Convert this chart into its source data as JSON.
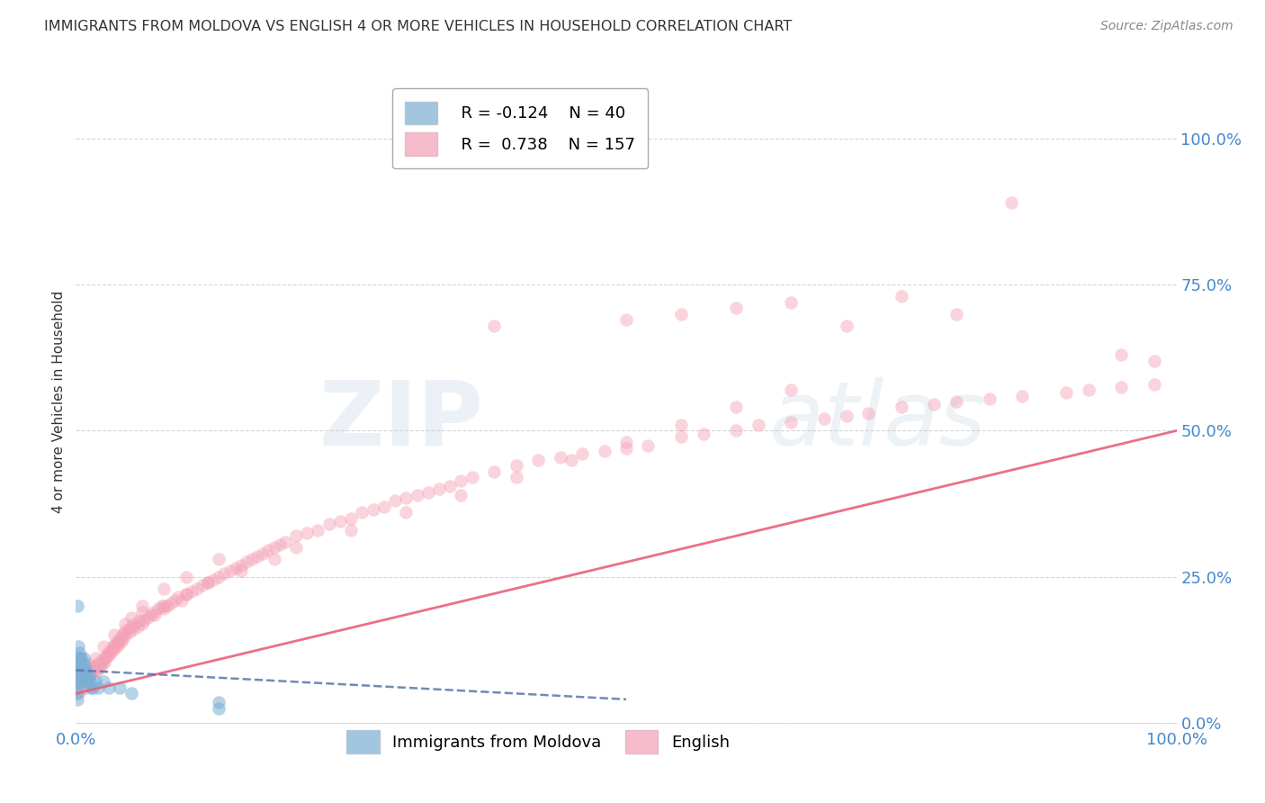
{
  "title": "IMMIGRANTS FROM MOLDOVA VS ENGLISH 4 OR MORE VEHICLES IN HOUSEHOLD CORRELATION CHART",
  "source": "Source: ZipAtlas.com",
  "ylabel": "4 or more Vehicles in Household",
  "xlim": [
    0.0,
    1.0
  ],
  "ylim": [
    0.0,
    1.1
  ],
  "x_tick_labels": [
    "0.0%",
    "100.0%"
  ],
  "y_tick_labels": [
    "0.0%",
    "25.0%",
    "50.0%",
    "75.0%",
    "100.0%"
  ],
  "y_tick_positions": [
    0.0,
    0.25,
    0.5,
    0.75,
    1.0
  ],
  "legend_r_blue": "-0.124",
  "legend_n_blue": "40",
  "legend_r_pink": "0.738",
  "legend_n_pink": "157",
  "color_blue": "#7BAFD4",
  "color_pink": "#F4A0B5",
  "color_blue_line": "#5577AA",
  "color_pink_line": "#E8607A",
  "watermark_zip": "ZIP",
  "watermark_atlas": "atlas",
  "background_color": "#ffffff",
  "grid_color": "#cccccc",
  "title_color": "#333333",
  "axis_label_color": "#333333",
  "tick_label_color_blue": "#4488CC",
  "source_color": "#888888",
  "blue_x": [
    0.001,
    0.001,
    0.001,
    0.001,
    0.001,
    0.002,
    0.002,
    0.002,
    0.002,
    0.003,
    0.003,
    0.003,
    0.004,
    0.004,
    0.005,
    0.005,
    0.005,
    0.006,
    0.006,
    0.007,
    0.007,
    0.008,
    0.008,
    0.009,
    0.009,
    0.01,
    0.011,
    0.012,
    0.013,
    0.014,
    0.015,
    0.018,
    0.02,
    0.025,
    0.03,
    0.04,
    0.05,
    0.13,
    0.13,
    0.001
  ],
  "blue_y": [
    0.04,
    0.06,
    0.08,
    0.1,
    0.05,
    0.07,
    0.09,
    0.11,
    0.13,
    0.08,
    0.1,
    0.12,
    0.09,
    0.11,
    0.07,
    0.09,
    0.11,
    0.08,
    0.1,
    0.09,
    0.11,
    0.08,
    0.1,
    0.07,
    0.09,
    0.08,
    0.07,
    0.08,
    0.07,
    0.06,
    0.06,
    0.07,
    0.06,
    0.07,
    0.06,
    0.06,
    0.05,
    0.025,
    0.035,
    0.2
  ],
  "pink_x": [
    0.001,
    0.002,
    0.003,
    0.004,
    0.005,
    0.005,
    0.006,
    0.007,
    0.008,
    0.008,
    0.009,
    0.01,
    0.01,
    0.011,
    0.012,
    0.013,
    0.014,
    0.015,
    0.016,
    0.017,
    0.018,
    0.019,
    0.02,
    0.021,
    0.022,
    0.023,
    0.024,
    0.025,
    0.026,
    0.027,
    0.028,
    0.029,
    0.03,
    0.031,
    0.032,
    0.033,
    0.034,
    0.035,
    0.036,
    0.037,
    0.038,
    0.039,
    0.04,
    0.041,
    0.042,
    0.043,
    0.044,
    0.045,
    0.047,
    0.049,
    0.05,
    0.052,
    0.054,
    0.056,
    0.058,
    0.06,
    0.062,
    0.065,
    0.068,
    0.07,
    0.072,
    0.075,
    0.078,
    0.08,
    0.083,
    0.086,
    0.09,
    0.093,
    0.096,
    0.1,
    0.105,
    0.11,
    0.115,
    0.12,
    0.125,
    0.13,
    0.135,
    0.14,
    0.145,
    0.15,
    0.155,
    0.16,
    0.165,
    0.17,
    0.175,
    0.18,
    0.185,
    0.19,
    0.2,
    0.21,
    0.22,
    0.23,
    0.24,
    0.25,
    0.26,
    0.27,
    0.28,
    0.29,
    0.3,
    0.31,
    0.32,
    0.33,
    0.34,
    0.35,
    0.36,
    0.38,
    0.4,
    0.42,
    0.44,
    0.46,
    0.48,
    0.5,
    0.52,
    0.55,
    0.57,
    0.6,
    0.62,
    0.65,
    0.68,
    0.7,
    0.72,
    0.75,
    0.78,
    0.8,
    0.83,
    0.86,
    0.9,
    0.92,
    0.95,
    0.98,
    0.05,
    0.06,
    0.08,
    0.1,
    0.12,
    0.15,
    0.18,
    0.2,
    0.25,
    0.3,
    0.35,
    0.4,
    0.45,
    0.5,
    0.55,
    0.6,
    0.65,
    0.007,
    0.012,
    0.018,
    0.025,
    0.035,
    0.045,
    0.06,
    0.08,
    0.1,
    0.13
  ],
  "pink_y": [
    0.05,
    0.06,
    0.065,
    0.07,
    0.055,
    0.075,
    0.065,
    0.07,
    0.08,
    0.06,
    0.07,
    0.065,
    0.085,
    0.075,
    0.08,
    0.09,
    0.085,
    0.095,
    0.09,
    0.085,
    0.095,
    0.1,
    0.09,
    0.1,
    0.095,
    0.105,
    0.1,
    0.11,
    0.105,
    0.11,
    0.115,
    0.12,
    0.115,
    0.12,
    0.125,
    0.13,
    0.125,
    0.13,
    0.135,
    0.13,
    0.14,
    0.135,
    0.145,
    0.14,
    0.15,
    0.145,
    0.155,
    0.15,
    0.16,
    0.155,
    0.165,
    0.16,
    0.17,
    0.165,
    0.175,
    0.17,
    0.175,
    0.18,
    0.185,
    0.19,
    0.185,
    0.195,
    0.2,
    0.195,
    0.2,
    0.205,
    0.21,
    0.215,
    0.21,
    0.22,
    0.225,
    0.23,
    0.235,
    0.24,
    0.245,
    0.25,
    0.255,
    0.26,
    0.265,
    0.27,
    0.275,
    0.28,
    0.285,
    0.29,
    0.295,
    0.3,
    0.305,
    0.31,
    0.32,
    0.325,
    0.33,
    0.34,
    0.345,
    0.35,
    0.36,
    0.365,
    0.37,
    0.38,
    0.385,
    0.39,
    0.395,
    0.4,
    0.405,
    0.415,
    0.42,
    0.43,
    0.44,
    0.45,
    0.455,
    0.46,
    0.465,
    0.47,
    0.475,
    0.49,
    0.495,
    0.5,
    0.51,
    0.515,
    0.52,
    0.525,
    0.53,
    0.54,
    0.545,
    0.55,
    0.555,
    0.56,
    0.565,
    0.57,
    0.575,
    0.58,
    0.18,
    0.19,
    0.2,
    0.22,
    0.24,
    0.26,
    0.28,
    0.3,
    0.33,
    0.36,
    0.39,
    0.42,
    0.45,
    0.48,
    0.51,
    0.54,
    0.57,
    0.08,
    0.1,
    0.11,
    0.13,
    0.15,
    0.17,
    0.2,
    0.23,
    0.25,
    0.28
  ],
  "extra_pink_outliers_x": [
    0.38,
    0.5,
    0.55,
    0.6,
    0.65,
    0.7,
    0.75,
    0.8,
    0.85,
    0.95,
    0.98
  ],
  "extra_pink_outliers_y": [
    0.68,
    0.69,
    0.7,
    0.71,
    0.72,
    0.68,
    0.73,
    0.7,
    0.89,
    0.63,
    0.62
  ]
}
